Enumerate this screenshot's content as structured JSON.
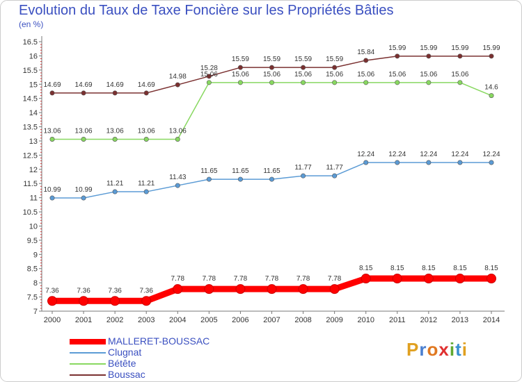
{
  "header": {
    "title": "Evolution du Taux de Taxe Foncière sur les Propriétés Bâties",
    "subtitle": "(en %)"
  },
  "logo": {
    "letters": [
      "P",
      "r",
      "o",
      "x",
      "i",
      "t",
      "i"
    ],
    "colors": [
      "#e0a020",
      "#4a7fd0",
      "#e07820",
      "#e03030",
      "#60a830",
      "#3a90d0",
      "#e0a020"
    ]
  },
  "chart_data": {
    "type": "line",
    "x": [
      "2000",
      "2001",
      "2002",
      "2003",
      "2004",
      "2005",
      "2006",
      "2007",
      "2008",
      "2009",
      "2010",
      "2011",
      "2012",
      "2013",
      "2014"
    ],
    "ylim": [
      7,
      16.5
    ],
    "yticks": [
      "7",
      "7.5",
      "8",
      "8.5",
      "9",
      "9.5",
      "10",
      "10.5",
      "11",
      "11.5",
      "12",
      "12.5",
      "13",
      "13.5",
      "14",
      "14.5",
      "15",
      "15.5",
      "16",
      "16.5"
    ],
    "grid": false,
    "legend_position": "bottom-left",
    "series": [
      {
        "name": "MALLERET-BOUSSAC",
        "color": "#ff0000",
        "emphasis": true,
        "values": [
          7.36,
          7.36,
          7.36,
          7.36,
          7.78,
          7.78,
          7.78,
          7.78,
          7.78,
          7.78,
          8.15,
          8.15,
          8.15,
          8.15,
          8.15
        ],
        "labels": [
          "7.36",
          "7.36",
          "7.36",
          "7.36",
          "7.78",
          "7.78",
          "7.78",
          "7.78",
          "7.78",
          "7.78",
          "8.15",
          "8.15",
          "8.15",
          "8.15",
          "8.15"
        ]
      },
      {
        "name": "Clugnat",
        "color": "#5b9bd5",
        "emphasis": false,
        "values": [
          10.99,
          10.99,
          11.21,
          11.21,
          11.43,
          11.65,
          11.65,
          11.65,
          11.77,
          11.77,
          12.24,
          12.24,
          12.24,
          12.24,
          12.24
        ],
        "labels": [
          "10.99",
          "10.99",
          "11.21",
          "11.21",
          "11.43",
          "11.65",
          "11.65",
          "11.65",
          "11.77",
          "11.77",
          "12.24",
          "12.24",
          "12.24",
          "12.24",
          "12.24"
        ]
      },
      {
        "name": "Bétête",
        "color": "#88d860",
        "emphasis": false,
        "values": [
          13.06,
          13.06,
          13.06,
          13.06,
          13.06,
          15.06,
          15.06,
          15.06,
          15.06,
          15.06,
          15.06,
          15.06,
          15.06,
          15.06,
          14.6
        ],
        "labels": [
          "13.06",
          "13.06",
          "13.06",
          "13.06",
          "13.06",
          "15.06",
          "15.06",
          "15.06",
          "15.06",
          "15.06",
          "15.06",
          "15.06",
          "15.06",
          "15.06",
          "14.6"
        ]
      },
      {
        "name": "Boussac",
        "color": "#7a3030",
        "emphasis": false,
        "values": [
          14.69,
          14.69,
          14.69,
          14.69,
          14.98,
          15.28,
          15.59,
          15.59,
          15.59,
          15.59,
          15.84,
          15.99,
          15.99,
          15.99,
          15.99
        ],
        "labels": [
          "14.69",
          "14.69",
          "14.69",
          "14.69",
          "14.98",
          "15.28",
          "15.59",
          "15.59",
          "15.59",
          "15.59",
          "15.84",
          "15.99",
          "15.99",
          "15.99",
          "15.99"
        ]
      }
    ]
  }
}
